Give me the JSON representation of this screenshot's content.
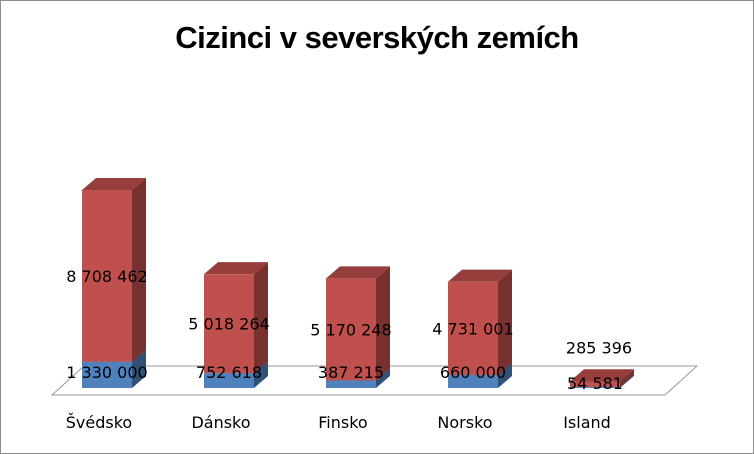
{
  "chart_data": {
    "type": "bar",
    "stacked": true,
    "title": "Cizinci v severských zemích",
    "categories": [
      "Švédsko",
      "Dánsko",
      "Finsko",
      "Norsko",
      "Island"
    ],
    "series": [
      {
        "values": [
          1330000,
          752618,
          387215,
          660000,
          54581
        ],
        "labels": [
          "1 330 000",
          "752 618",
          "387 215",
          "660 000",
          "54 581"
        ],
        "color": "#4f81bd"
      },
      {
        "values": [
          8708462,
          5018264,
          5170248,
          4731001,
          285396
        ],
        "labels": [
          "8 708 462",
          "5 018 264",
          "5 170 248",
          "4 731 001",
          "285 396"
        ],
        "color": "#c0504d"
      }
    ],
    "grid": false,
    "legend": "none"
  }
}
